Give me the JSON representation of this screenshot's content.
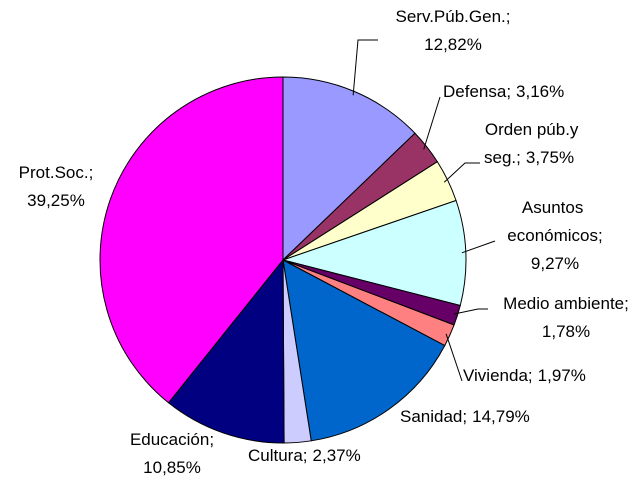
{
  "chart_data": {
    "type": "pie",
    "categories": [
      "Serv.Púb.Gen.;",
      "Defensa;",
      "Orden púb.y seg.;",
      "Asuntos económicos;",
      "Medio ambiente;",
      "Vivienda;",
      "Sanidad;",
      "Cultura;",
      "Educación;",
      "Prot.Soc.;"
    ],
    "values": [
      12.82,
      3.16,
      3.75,
      9.27,
      1.78,
      1.97,
      14.79,
      2.37,
      10.85,
      39.25
    ],
    "value_labels": [
      "12,82%",
      "3,16%",
      "3,75%",
      "9,27%",
      "1,78%",
      "1,97%",
      "14,79%",
      "2,37%",
      "10,85%",
      "39,25%"
    ],
    "colors": [
      "#9999ff",
      "#993366",
      "#ffffcc",
      "#ccffff",
      "#660066",
      "#ff8080",
      "#0066cc",
      "#ccccff",
      "#000080",
      "#ff00ff"
    ]
  }
}
